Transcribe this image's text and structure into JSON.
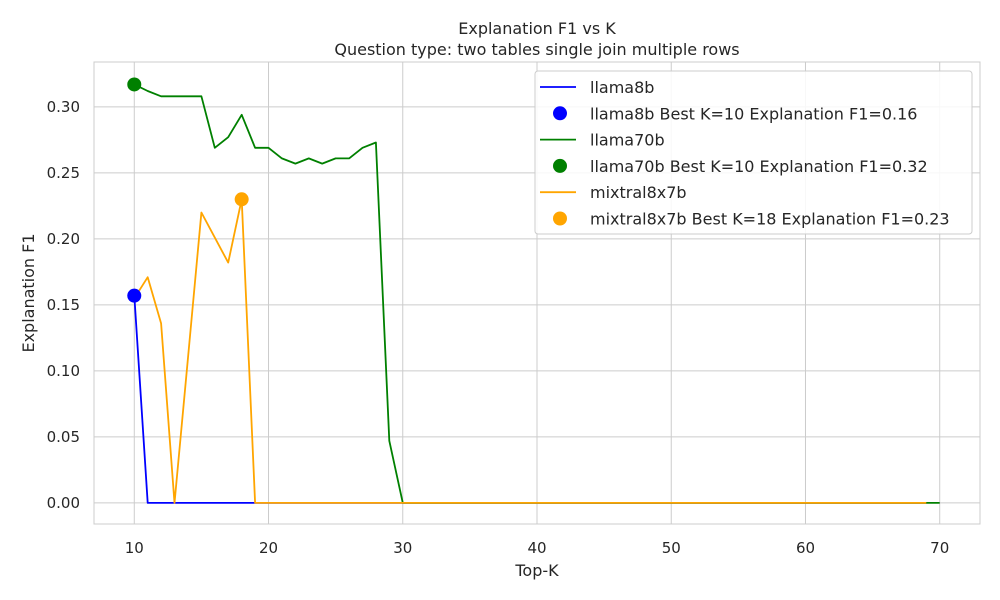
{
  "chart_data": {
    "type": "line",
    "title": "Explanation F1 vs K",
    "subtitle": "Question type: two tables single join multiple rows",
    "xlabel": "Top-K",
    "ylabel": "Explanation F1",
    "xlim": [
      7,
      73
    ],
    "ylim": [
      -0.016,
      0.334
    ],
    "xticks": [
      10,
      20,
      30,
      40,
      50,
      60,
      70
    ],
    "yticks": [
      0.0,
      0.05,
      0.1,
      0.15,
      0.2,
      0.25,
      0.3
    ],
    "ytick_labels": [
      "0.00",
      "0.05",
      "0.10",
      "0.15",
      "0.20",
      "0.25",
      "0.30"
    ],
    "grid": true,
    "legend_position": "top-right",
    "series": [
      {
        "name": "llama8b",
        "color": "#0000ff",
        "x": [
          10,
          11,
          12,
          13,
          14,
          15,
          16,
          17,
          18,
          19,
          20,
          30,
          40,
          50,
          60,
          69
        ],
        "y": [
          0.157,
          0.0,
          0.0,
          0.0,
          0.0,
          0.0,
          0.0,
          0.0,
          0.0,
          0.0,
          0.0,
          0.0,
          0.0,
          0.0,
          0.0,
          0.0
        ],
        "best_label": "llama8b Best K=10 Explanation F1=0.16",
        "best_x": 10,
        "best_y": 0.157
      },
      {
        "name": "llama70b",
        "color": "#008000",
        "x": [
          10,
          11,
          12,
          13,
          14,
          15,
          16,
          17,
          18,
          19,
          20,
          21,
          22,
          23,
          24,
          25,
          26,
          27,
          28,
          29,
          30,
          40,
          50,
          60,
          70
        ],
        "y": [
          0.317,
          0.312,
          0.308,
          0.308,
          0.308,
          0.308,
          0.269,
          0.277,
          0.294,
          0.269,
          0.269,
          0.261,
          0.257,
          0.261,
          0.257,
          0.261,
          0.261,
          0.269,
          0.273,
          0.047,
          0.0,
          0.0,
          0.0,
          0.0,
          0.0
        ],
        "best_label": "llama70b Best K=10 Explanation F1=0.32",
        "best_x": 10,
        "best_y": 0.317
      },
      {
        "name": "mixtral8x7b",
        "color": "#ffa500",
        "x": [
          10,
          11,
          12,
          13,
          14,
          15,
          16,
          17,
          18,
          19,
          20,
          30,
          40,
          50,
          60,
          69
        ],
        "y": [
          0.155,
          0.171,
          0.136,
          0.0,
          0.11,
          0.22,
          0.201,
          0.182,
          0.23,
          0.0,
          0.0,
          0.0,
          0.0,
          0.0,
          0.0,
          0.0
        ],
        "best_label": "mixtral8x7b Best K=18 Explanation F1=0.23",
        "best_x": 18,
        "best_y": 0.23
      }
    ]
  }
}
